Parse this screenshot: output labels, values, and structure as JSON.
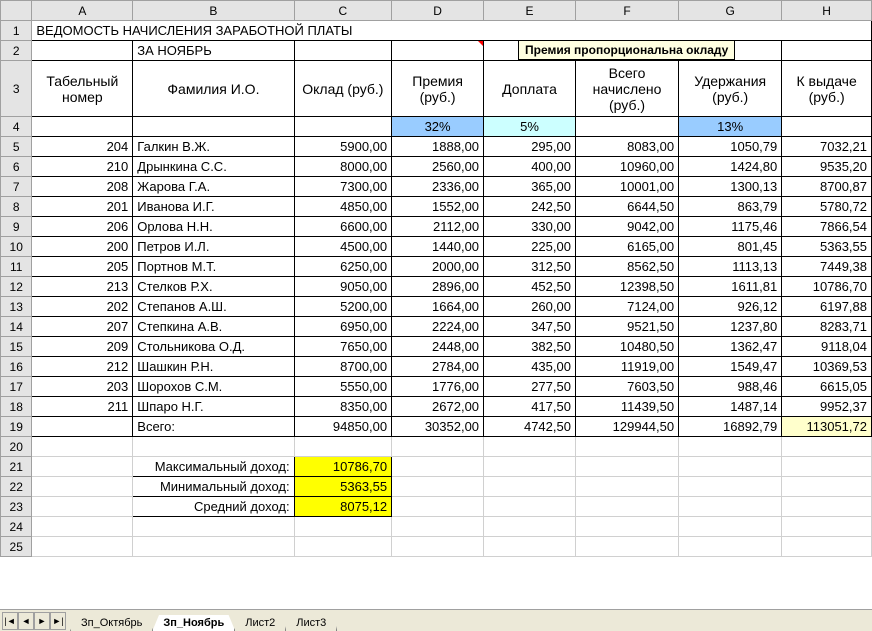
{
  "columns": {
    "letters": [
      "A",
      "B",
      "C",
      "D",
      "E",
      "F",
      "G",
      "H"
    ],
    "widths": [
      90,
      140,
      87,
      82,
      82,
      92,
      92,
      80
    ]
  },
  "title_row": {
    "text": "ВЕДОМОСТЬ НАЧИСЛЕНИЯ ЗАРАБОТНОЙ ПЛАТЫ"
  },
  "subtitle_row": {
    "text": "ЗА НОЯБРЬ"
  },
  "tooltip": "Премия пропорциональна окладу",
  "headers": [
    "Табельный номер",
    "Фамилия И.О.",
    "Оклад (руб.)",
    "Премия (руб.)",
    "Доплата",
    "Всего начислено (руб.)",
    "Удержания (руб.)",
    "К выдаче (руб.)"
  ],
  "percent_row": {
    "d": "32%",
    "e": "5%",
    "g": "13%"
  },
  "percent_row_colors": {
    "d": "cell-shade-blue1",
    "e": "cell-shade-blue2",
    "g": "cell-shade-blue1"
  },
  "data": [
    {
      "num": "204",
      "name": "Галкин В.Ж.",
      "c": "5900,00",
      "d": "1888,00",
      "e": "295,00",
      "f": "8083,00",
      "g": "1050,79",
      "h": "7032,21",
      "hc": "green"
    },
    {
      "num": "210",
      "name": "Дрынкина С.С.",
      "c": "8000,00",
      "d": "2560,00",
      "e": "400,00",
      "f": "10960,00",
      "g": "1424,80",
      "h": "9535,20",
      "hc": "green"
    },
    {
      "num": "208",
      "name": "Жарова Г.А.",
      "c": "7300,00",
      "d": "2336,00",
      "e": "365,00",
      "f": "10001,00",
      "g": "1300,13",
      "h": "8700,87",
      "hc": "green"
    },
    {
      "num": "201",
      "name": "Иванова И.Г.",
      "c": "4850,00",
      "d": "1552,00",
      "e": "242,50",
      "f": "6644,50",
      "g": "863,79",
      "h": "5780,72",
      "hc": "red"
    },
    {
      "num": "206",
      "name": "Орлова Н.Н.",
      "c": "6600,00",
      "d": "2112,00",
      "e": "330,00",
      "f": "9042,00",
      "g": "1175,46",
      "h": "7866,54",
      "hc": "green"
    },
    {
      "num": "200",
      "name": "Петров И.Л.",
      "c": "4500,00",
      "d": "1440,00",
      "e": "225,00",
      "f": "6165,00",
      "g": "801,45",
      "h": "5363,55",
      "hc": "red"
    },
    {
      "num": "205",
      "name": "Портнов М.Т.",
      "c": "6250,00",
      "d": "2000,00",
      "e": "312,50",
      "f": "8562,50",
      "g": "1113,13",
      "h": "7449,38",
      "hc": "green"
    },
    {
      "num": "213",
      "name": "Стелков Р.Х.",
      "c": "9050,00",
      "d": "2896,00",
      "e": "452,50",
      "f": "12398,50",
      "g": "1611,81",
      "h": "10786,70",
      "hc": "blue"
    },
    {
      "num": "202",
      "name": "Степанов А.Ш.",
      "c": "5200,00",
      "d": "1664,00",
      "e": "260,00",
      "f": "7124,00",
      "g": "926,12",
      "h": "6197,88",
      "hc": "red"
    },
    {
      "num": "207",
      "name": "Степкина А.В.",
      "c": "6950,00",
      "d": "2224,00",
      "e": "347,50",
      "f": "9521,50",
      "g": "1237,80",
      "h": "8283,71",
      "hc": "green"
    },
    {
      "num": "209",
      "name": "Стольникова О.Д.",
      "c": "7650,00",
      "d": "2448,00",
      "e": "382,50",
      "f": "10480,50",
      "g": "1362,47",
      "h": "9118,04",
      "hc": "green"
    },
    {
      "num": "212",
      "name": "Шашкин Р.Н.",
      "c": "8700,00",
      "d": "2784,00",
      "e": "435,00",
      "f": "11919,00",
      "g": "1549,47",
      "h": "10369,53",
      "hc": "blue"
    },
    {
      "num": "203",
      "name": "Шорохов С.М.",
      "c": "5550,00",
      "d": "1776,00",
      "e": "277,50",
      "f": "7603,50",
      "g": "988,46",
      "h": "6615,05",
      "hc": "red"
    },
    {
      "num": "211",
      "name": "Шпаро Н.Г.",
      "c": "8350,00",
      "d": "2672,00",
      "e": "417,50",
      "f": "11439,50",
      "g": "1487,14",
      "h": "9952,37",
      "hc": "green"
    }
  ],
  "totals": {
    "label": "Всего:",
    "c": "94850,00",
    "d": "30352,00",
    "e": "4742,50",
    "f": "129944,50",
    "g": "16892,79",
    "h": "113051,72"
  },
  "stats": [
    {
      "label": "Максимальный доход:",
      "value": "10786,70"
    },
    {
      "label": "Минимальный доход:",
      "value": "5363,55"
    },
    {
      "label": "Средний доход:",
      "value": "8075,12"
    }
  ],
  "empty_rows": [
    "20",
    "24",
    "25"
  ],
  "tabs": {
    "items": [
      "Зп_Октябрь",
      "Зп_Ноябрь",
      "Лист2",
      "Лист3"
    ],
    "active": 1
  },
  "nav_icons": [
    "|◄",
    "◄",
    "►",
    "►|"
  ]
}
